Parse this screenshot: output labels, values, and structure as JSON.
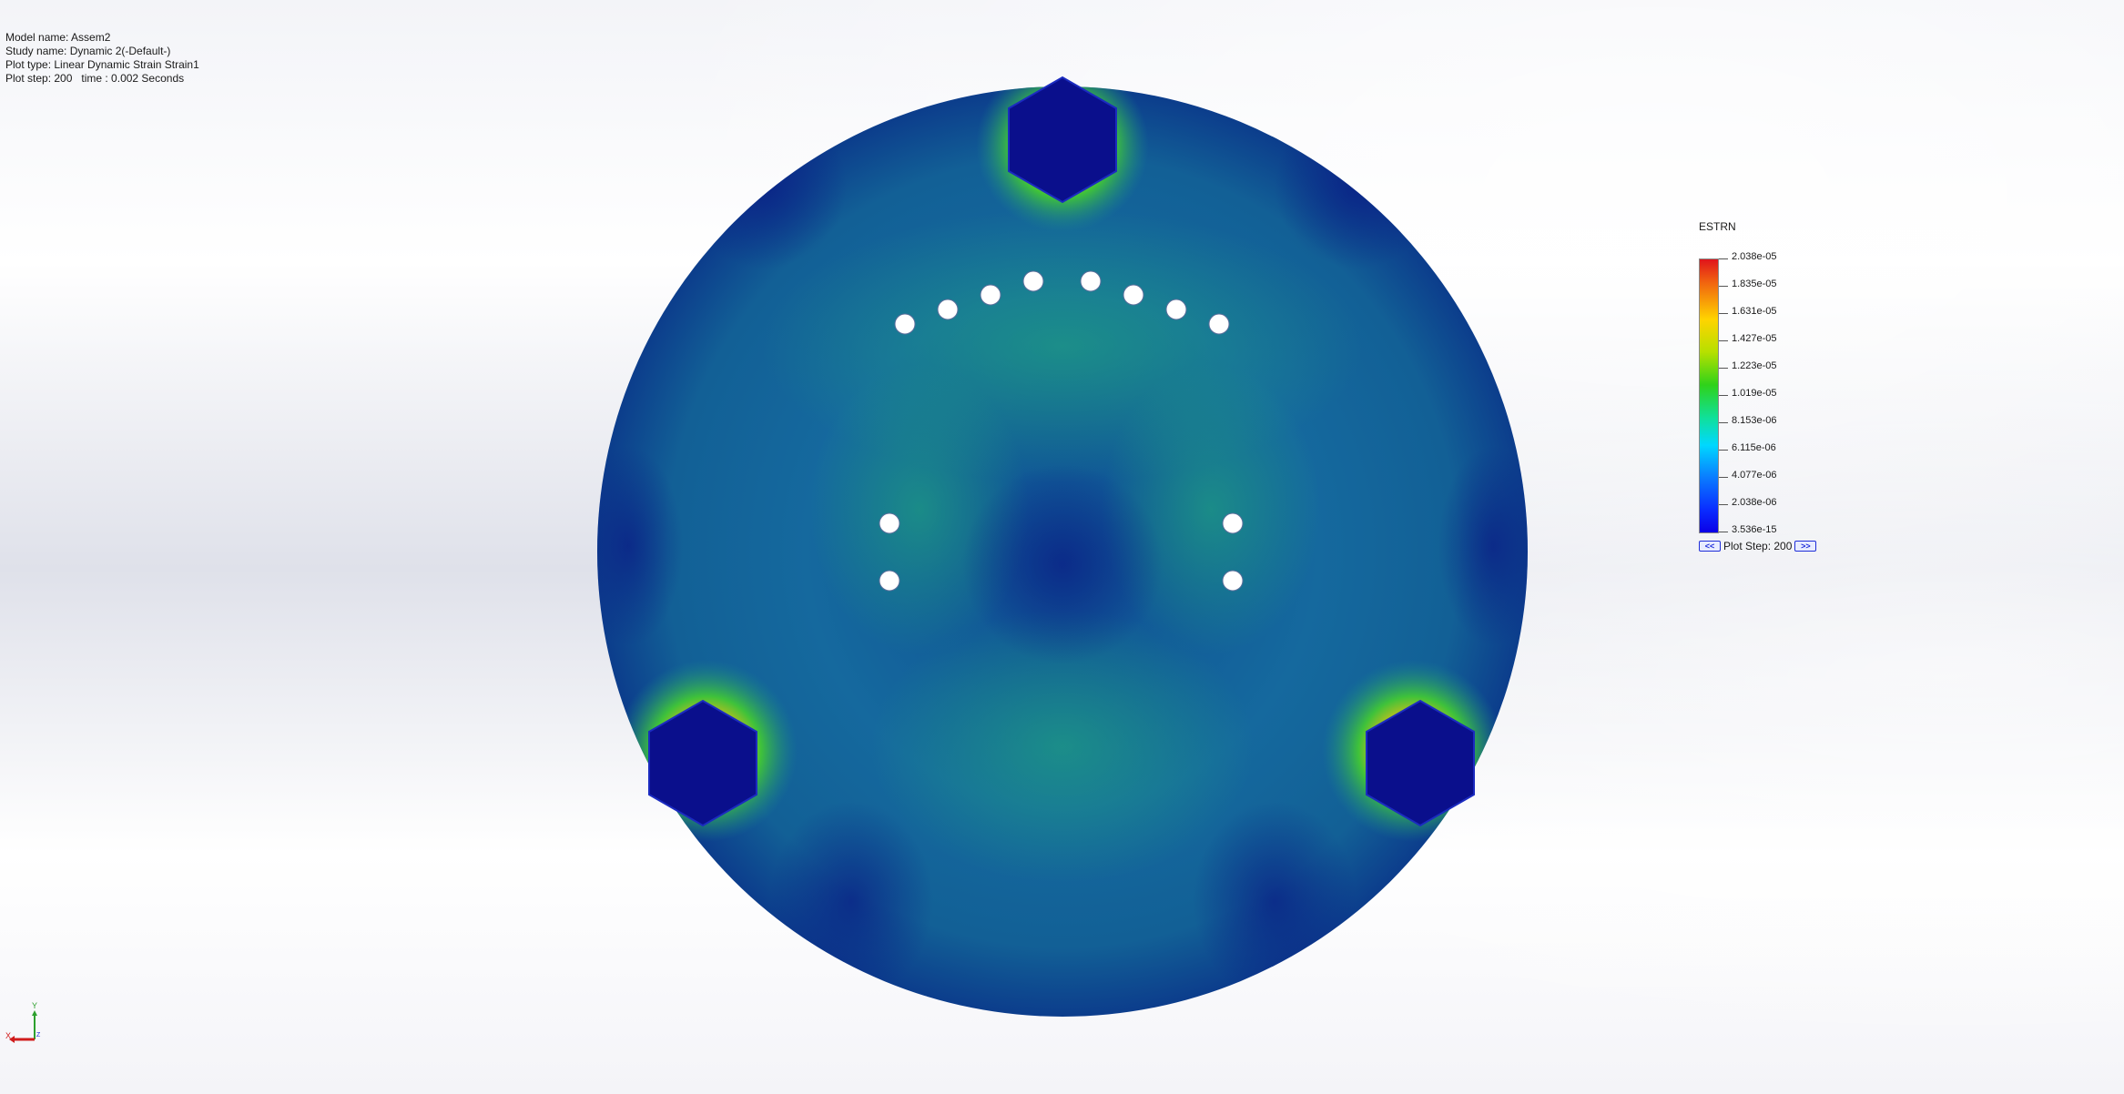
{
  "plot_info": {
    "model_name": "Model name: Assem2",
    "study_name": "Study name: Dynamic 2(-Default-)",
    "plot_type": "Plot type: Linear Dynamic Strain Strain1",
    "plot_step": "Plot step: 200   time : 0.002 Seconds"
  },
  "legend": {
    "title": "ESTRN",
    "ticks": [
      "2.038e-05",
      "1.835e-05",
      "1.631e-05",
      "1.427e-05",
      "1.223e-05",
      "1.019e-05",
      "8.153e-06",
      "6.115e-06",
      "4.077e-06",
      "2.038e-06",
      "3.536e-15"
    ],
    "colors": [
      "#e0141b",
      "#ffd400",
      "#2fd21a",
      "#10e09a",
      "#00d8ff",
      "#0a2bff"
    ],
    "prev_button": "<<",
    "step_label": "Plot Step: 200",
    "next_button": ">>"
  },
  "triad": {
    "y_label": "Y",
    "x_label": "X",
    "z_label": "Z"
  },
  "model_colors": {
    "disc_base": "#125f9a",
    "disc_dark": "#0a2f8a",
    "bolt_head": "#0a0f8c",
    "hot": "#d8301c",
    "warm": "#e6c014",
    "mid": "#3fc23a",
    "hole": "#ffffff"
  }
}
